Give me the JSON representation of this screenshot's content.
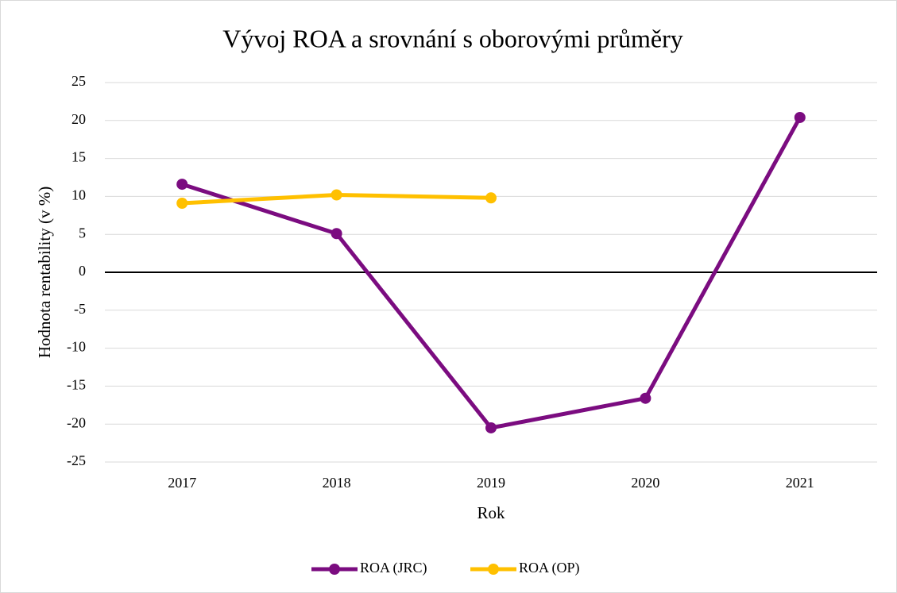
{
  "chart_data": {
    "type": "line",
    "title": "Vývoj ROA a srovnání s oborovými průměry",
    "x_label": "Rok",
    "y_label": "Hodnota rentability (v %)",
    "categories": [
      "2017",
      "2018",
      "2019",
      "2020",
      "2021"
    ],
    "series": [
      {
        "name": "ROA (JRC)",
        "color": "#7b0c80",
        "values": [
          11.6,
          5.1,
          -20.5,
          -16.6,
          20.4
        ]
      },
      {
        "name": "ROA (OP)",
        "color": "#ffc000",
        "values": [
          9.1,
          10.2,
          9.8,
          null,
          null
        ]
      }
    ],
    "ylim": [
      -25,
      25
    ],
    "yticks": [
      -25,
      -20,
      -15,
      -10,
      -5,
      0,
      5,
      10,
      15,
      20,
      25
    ],
    "grid": true,
    "legend": "bottom"
  }
}
